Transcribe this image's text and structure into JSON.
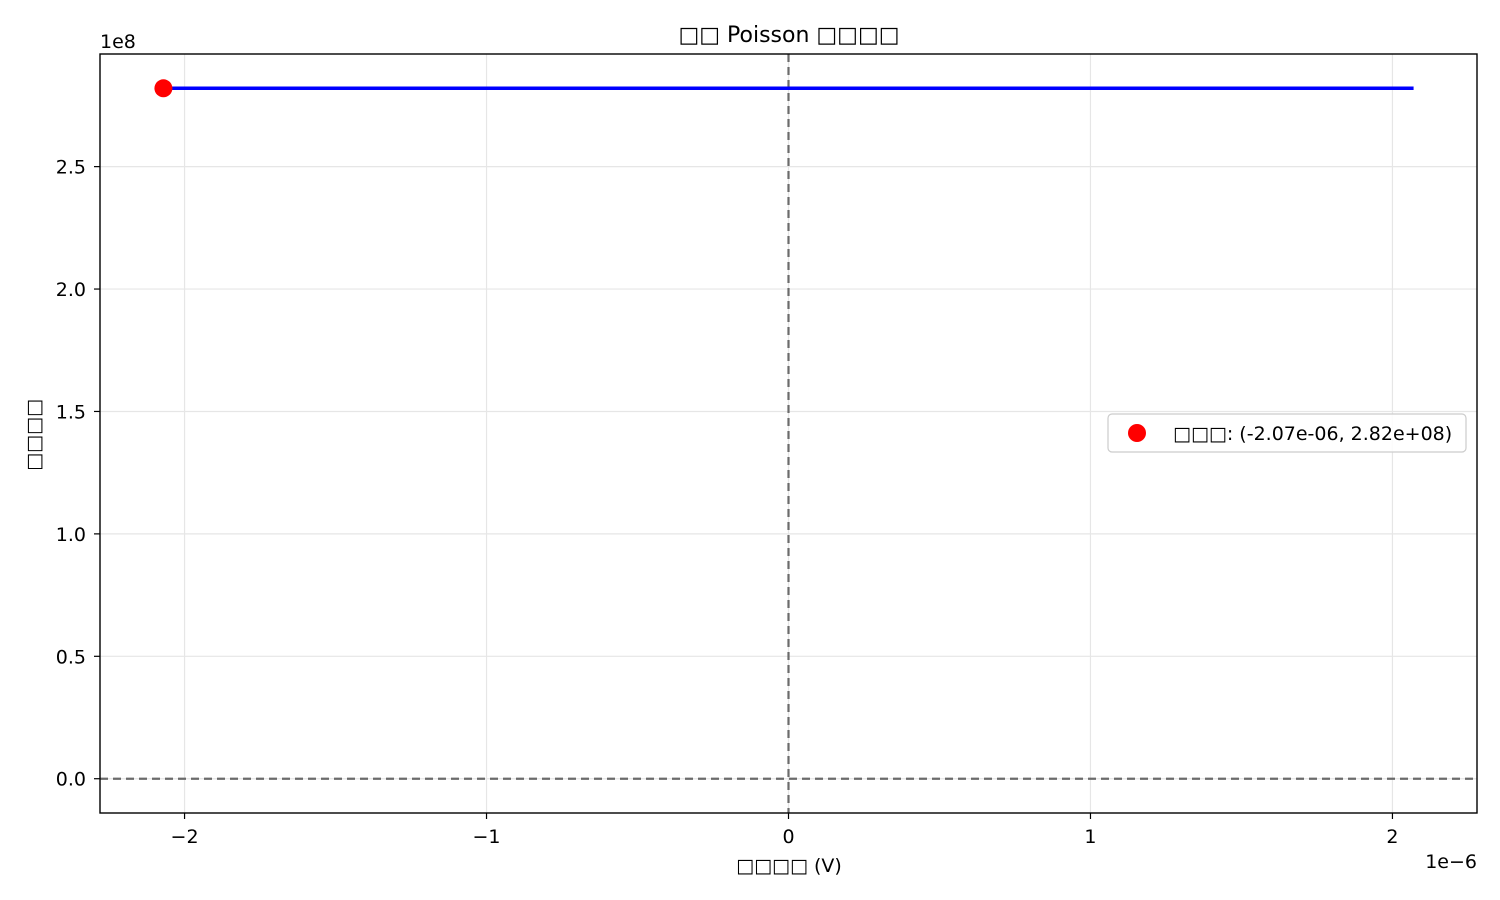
{
  "chart_data": {
    "type": "line",
    "title": "□□ Poisson □□□□",
    "xlabel": "□□□□ (V)",
    "ylabel": "□□□□",
    "x_offset_label": "1e−6",
    "y_offset_label": "1e8",
    "xlim": [
      -2.28e-06,
      2.28e-06
    ],
    "ylim": [
      -14000000.0,
      296000000.0
    ],
    "x_ticks": [
      {
        "value": -2e-06,
        "label": "−2"
      },
      {
        "value": -1e-06,
        "label": "−1"
      },
      {
        "value": 0,
        "label": "0"
      },
      {
        "value": 1e-06,
        "label": "1"
      },
      {
        "value": 2e-06,
        "label": "2"
      }
    ],
    "y_ticks": [
      {
        "value": 0,
        "label": "0.0"
      },
      {
        "value": 50000000.0,
        "label": "0.5"
      },
      {
        "value": 100000000.0,
        "label": "1.0"
      },
      {
        "value": 150000000.0,
        "label": "1.5"
      },
      {
        "value": 200000000.0,
        "label": "2.0"
      },
      {
        "value": 250000000.0,
        "label": "2.5"
      }
    ],
    "grid": true,
    "reference_lines": {
      "vertical_x": 0,
      "horizontal_y": 0,
      "style": "dashed",
      "color": "#6b6b6b"
    },
    "series": [
      {
        "color": "#0000ff",
        "x": [
          -2.07e-06,
          2.07e-06
        ],
        "y": [
          282000000.0,
          282000000.0
        ]
      }
    ],
    "marker": {
      "name": "□□□: (-2.07e-06, 2.82e+08)",
      "x": -2.07e-06,
      "y": 282000000.0,
      "color": "#ff0000"
    },
    "legend": {
      "placement": "center-right",
      "entries": [
        {
          "label": "□□□: (-2.07e-06, 2.82e+08)",
          "color": "#ff0000",
          "marker": "circle"
        }
      ]
    }
  }
}
